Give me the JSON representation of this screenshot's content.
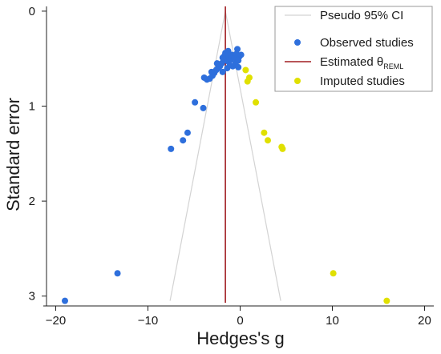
{
  "chart_data": {
    "type": "scatter",
    "title": "",
    "xlabel": "Hedges's g",
    "ylabel": "Standard error",
    "xlim": [
      -21,
      21
    ],
    "ylim": [
      3.07,
      -0.05
    ],
    "y_reversed": true,
    "xticks": [
      -20,
      -10,
      0,
      10,
      20
    ],
    "yticks": [
      0,
      1,
      2,
      3
    ],
    "grid": false,
    "legend_position": "top-right",
    "legend": [
      {
        "label": "Pseudo 95% CI",
        "kind": "line",
        "color": "#d3d3d3"
      },
      {
        "label": "Observed studies",
        "kind": "marker",
        "color": "#2e6fdc"
      },
      {
        "label": "Estimated θ",
        "subscript": "REML",
        "kind": "line",
        "color": "#a11d21"
      },
      {
        "label": "Imputed studies",
        "kind": "marker",
        "color": "#e0e000"
      }
    ],
    "estimate": -1.6,
    "ci_lines": {
      "apex": [
        -1.6,
        0.0
      ],
      "left_bottom": [
        -7.6,
        3.05
      ],
      "right_bottom": [
        4.4,
        3.05
      ]
    },
    "series": [
      {
        "name": "Observed studies",
        "color": "#2e6fdc",
        "points": [
          [
            -19.0,
            3.05
          ],
          [
            -13.3,
            2.76
          ],
          [
            -7.5,
            1.45
          ],
          [
            -6.2,
            1.36
          ],
          [
            -5.7,
            1.28
          ],
          [
            -4.9,
            0.96
          ],
          [
            -4.0,
            1.02
          ],
          [
            -3.9,
            0.7
          ],
          [
            -3.6,
            0.72
          ],
          [
            -3.3,
            0.71
          ],
          [
            -3.0,
            0.68
          ],
          [
            -2.8,
            0.65
          ],
          [
            -2.6,
            0.62
          ],
          [
            -2.4,
            0.6
          ],
          [
            -2.2,
            0.58
          ],
          [
            -2.0,
            0.55
          ],
          [
            -1.9,
            0.64
          ],
          [
            -1.8,
            0.52
          ],
          [
            -1.7,
            0.47
          ],
          [
            -1.6,
            0.44
          ],
          [
            -1.5,
            0.5
          ],
          [
            -1.4,
            0.6
          ],
          [
            -1.3,
            0.53
          ],
          [
            -1.2,
            0.48
          ],
          [
            -1.1,
            0.57
          ],
          [
            -1.0,
            0.51
          ],
          [
            -0.9,
            0.46
          ],
          [
            -0.8,
            0.58
          ],
          [
            -0.6,
            0.49
          ],
          [
            -0.5,
            0.55
          ],
          [
            -0.3,
            0.4
          ],
          [
            -0.4,
            0.45
          ],
          [
            -0.1,
            0.48
          ],
          [
            0.1,
            0.46
          ],
          [
            -0.2,
            0.52
          ],
          [
            -0.2,
            0.59
          ],
          [
            -2.5,
            0.55
          ],
          [
            -3.1,
            0.64
          ],
          [
            -1.9,
            0.49
          ],
          [
            -1.3,
            0.42
          ]
        ]
      },
      {
        "name": "Imputed studies",
        "color": "#e0e000",
        "points": [
          [
            15.9,
            3.05
          ],
          [
            10.1,
            2.76
          ],
          [
            4.6,
            1.45
          ],
          [
            4.5,
            1.43
          ],
          [
            3.0,
            1.36
          ],
          [
            2.6,
            1.28
          ],
          [
            1.7,
            0.96
          ],
          [
            0.8,
            0.74
          ],
          [
            1.0,
            0.7
          ],
          [
            0.6,
            0.62
          ]
        ]
      }
    ]
  }
}
